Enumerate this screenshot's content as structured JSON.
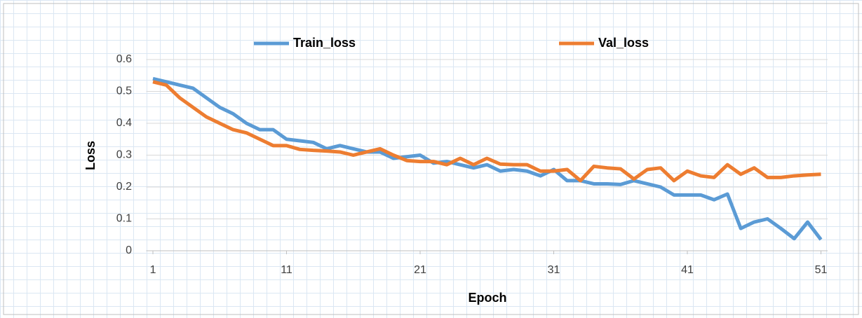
{
  "chart_data": {
    "type": "line",
    "x_label": "Epoch",
    "y_label": "Loss",
    "x": [
      1,
      2,
      3,
      4,
      5,
      6,
      7,
      8,
      9,
      10,
      11,
      12,
      13,
      14,
      15,
      16,
      17,
      18,
      19,
      20,
      21,
      22,
      23,
      24,
      25,
      26,
      27,
      28,
      29,
      30,
      31,
      32,
      33,
      34,
      35,
      36,
      37,
      38,
      39,
      40,
      41,
      42,
      43,
      44,
      45,
      46,
      47,
      48,
      49,
      50,
      51
    ],
    "series": [
      {
        "name": "Train_loss",
        "color": "#5b9bd5",
        "values": [
          0.54,
          0.53,
          0.52,
          0.51,
          0.48,
          0.45,
          0.43,
          0.4,
          0.38,
          0.38,
          0.35,
          0.345,
          0.34,
          0.32,
          0.33,
          0.32,
          0.31,
          0.31,
          0.29,
          0.295,
          0.3,
          0.275,
          0.28,
          0.27,
          0.26,
          0.27,
          0.25,
          0.255,
          0.25,
          0.235,
          0.255,
          0.22,
          0.22,
          0.21,
          0.21,
          0.208,
          0.22,
          0.21,
          0.2,
          0.175,
          0.175,
          0.175,
          0.16,
          0.178,
          0.07,
          0.09,
          0.1,
          0.07,
          0.038,
          0.09,
          0.035
        ]
      },
      {
        "name": "Val_loss",
        "color": "#ed7d31",
        "values": [
          0.53,
          0.52,
          0.48,
          0.45,
          0.42,
          0.4,
          0.38,
          0.37,
          0.35,
          0.33,
          0.33,
          0.318,
          0.315,
          0.313,
          0.31,
          0.3,
          0.31,
          0.32,
          0.3,
          0.283,
          0.28,
          0.28,
          0.27,
          0.29,
          0.27,
          0.29,
          0.272,
          0.27,
          0.27,
          0.25,
          0.25,
          0.255,
          0.22,
          0.265,
          0.26,
          0.257,
          0.225,
          0.255,
          0.26,
          0.22,
          0.25,
          0.235,
          0.23,
          0.27,
          0.24,
          0.26,
          0.23,
          0.23,
          0.235,
          0.238,
          0.24
        ]
      }
    ],
    "xlim": [
      0.5,
      51.5
    ],
    "xticks": [
      1,
      11,
      21,
      31,
      41,
      51
    ],
    "ylim": [
      0,
      0.6
    ],
    "yticks": [
      0,
      0.1,
      0.2,
      0.3,
      0.4,
      0.5,
      0.6
    ],
    "grid": true,
    "legend": "top"
  }
}
